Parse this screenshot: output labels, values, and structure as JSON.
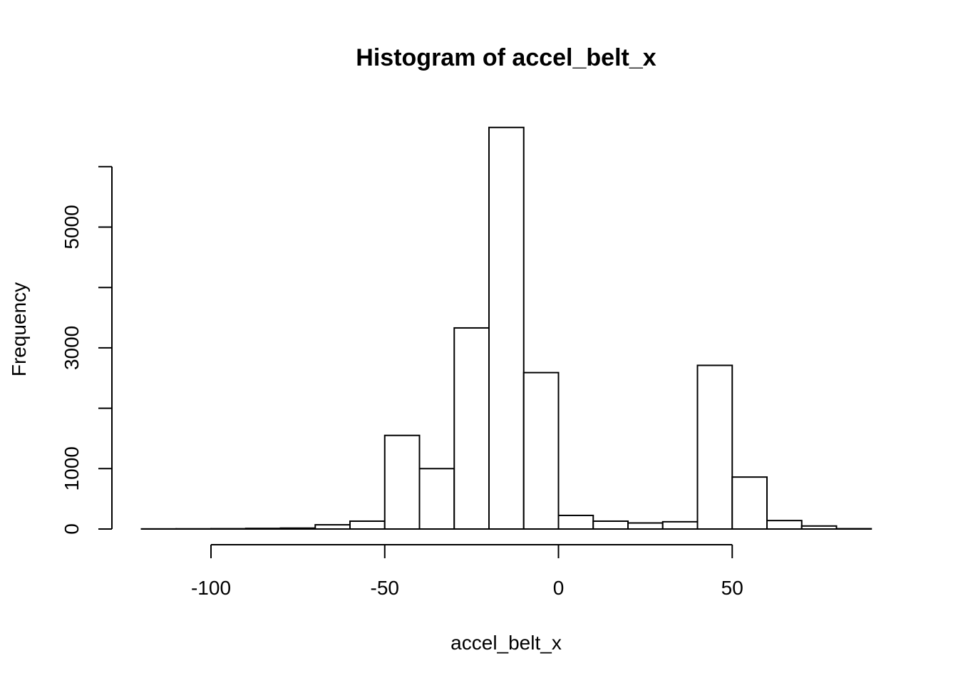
{
  "chart_data": {
    "type": "histogram",
    "title": "Histogram of accel_belt_x",
    "xlabel": "accel_belt_x",
    "ylabel": "Frequency",
    "xlim": [
      -120,
      90
    ],
    "ylim": [
      0,
      6700
    ],
    "x_ticks": [
      -100,
      -50,
      0,
      50
    ],
    "x_tick_labels": [
      "-100",
      "-50",
      "0",
      "50"
    ],
    "y_ticks": [
      0,
      1000,
      2000,
      3000,
      4000,
      5000,
      6000
    ],
    "y_tick_labels": [
      "0",
      "1000",
      "",
      "3000",
      "",
      "5000",
      ""
    ],
    "bins": [
      {
        "from": -120,
        "to": -110,
        "count": 2
      },
      {
        "from": -110,
        "to": -100,
        "count": 3
      },
      {
        "from": -100,
        "to": -90,
        "count": 5
      },
      {
        "from": -90,
        "to": -80,
        "count": 10
      },
      {
        "from": -80,
        "to": -70,
        "count": 15
      },
      {
        "from": -70,
        "to": -60,
        "count": 70
      },
      {
        "from": -60,
        "to": -50,
        "count": 130
      },
      {
        "from": -50,
        "to": -40,
        "count": 1550
      },
      {
        "from": -40,
        "to": -30,
        "count": 1000
      },
      {
        "from": -30,
        "to": -20,
        "count": 3330
      },
      {
        "from": -20,
        "to": -10,
        "count": 6650
      },
      {
        "from": -10,
        "to": 0,
        "count": 2590
      },
      {
        "from": 0,
        "to": 10,
        "count": 225
      },
      {
        "from": 10,
        "to": 20,
        "count": 130
      },
      {
        "from": 20,
        "to": 30,
        "count": 100
      },
      {
        "from": 30,
        "to": 40,
        "count": 120
      },
      {
        "from": 40,
        "to": 50,
        "count": 2710
      },
      {
        "from": 50,
        "to": 60,
        "count": 860
      },
      {
        "from": 60,
        "to": 70,
        "count": 140
      },
      {
        "from": 70,
        "to": 80,
        "count": 50
      },
      {
        "from": 80,
        "to": 90,
        "count": 5
      }
    ],
    "grid": false,
    "bar_fill": "#ffffff",
    "bar_stroke": "#000000"
  }
}
